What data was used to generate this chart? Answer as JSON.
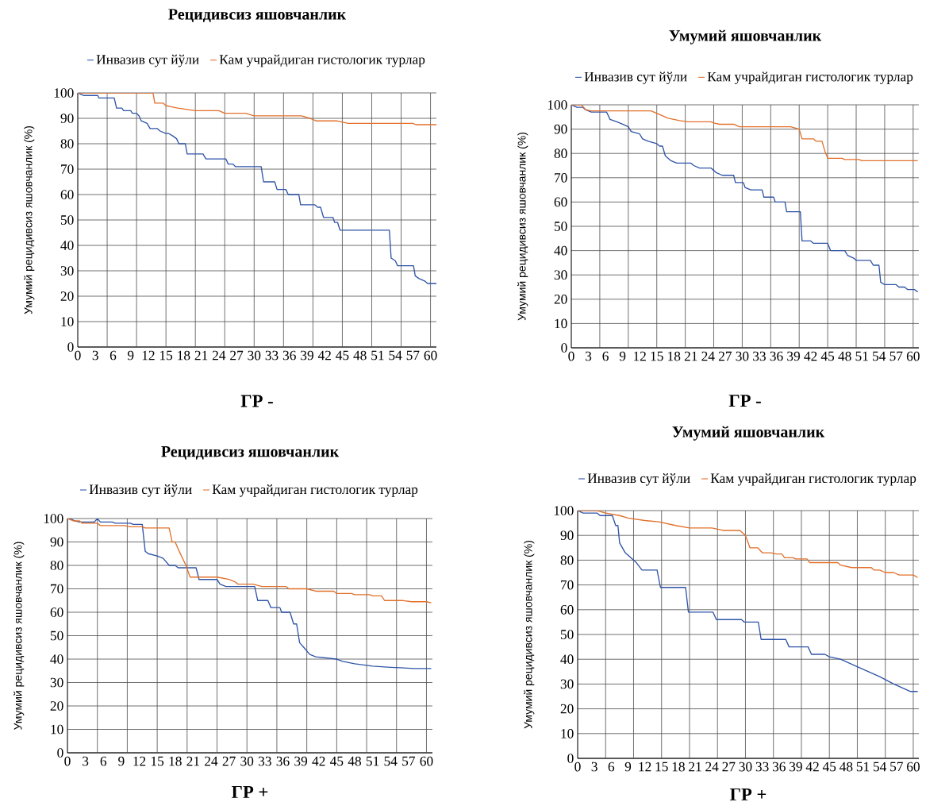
{
  "chart_data": [
    {
      "type": "line",
      "title": "Рецидивсиз яшовчанлик",
      "xlabel": "ГР -",
      "ylabel": "Умумий рецидивсиз яшовчанлик (%)",
      "xlim": [
        0,
        61
      ],
      "ylim": [
        0,
        100
      ],
      "xticks": [
        0,
        3,
        6,
        9,
        12,
        15,
        18,
        21,
        24,
        27,
        30,
        33,
        36,
        39,
        42,
        45,
        48,
        51,
        54,
        57,
        60,
        {
          "value": 5,
          "label": null
        },
        {
          "value": 10,
          "label": null
        },
        {
          "value": 15,
          "label": null
        },
        {
          "value": 20,
          "label": null
        },
        {
          "value": 25,
          "label": null
        },
        {
          "value": 30,
          "label": null
        },
        {
          "value": 35,
          "label": null
        },
        {
          "value": 40,
          "label": null
        },
        {
          "value": 45,
          "label": null
        },
        {
          "value": 50,
          "label": null
        },
        {
          "value": 55,
          "label": null
        },
        {
          "value": 60,
          "label": null
        }
      ],
      "yticks": [
        0,
        10,
        20,
        30,
        40,
        50,
        60,
        70,
        80,
        90,
        100
      ],
      "grid": true,
      "legend": "top",
      "marker": "none",
      "line_style": "solid",
      "series": [
        {
          "name": "Инвазив сут йўли",
          "color": "#2f54a8",
          "x": [
            0,
            1,
            3.4,
            3.6,
            6.2,
            6.6,
            7.5,
            7.8,
            9,
            9.3,
            10,
            10.4,
            10.8,
            11.8,
            12.3,
            13.5,
            14,
            15,
            15.5,
            16.2,
            16.8,
            17.2,
            18.3,
            18.6,
            21.3,
            21.8,
            25.2,
            25.6,
            26.4,
            26.8,
            31.2,
            31.6,
            33.5,
            33.9,
            35.4,
            35.8,
            37.6,
            37.9,
            40.3,
            40.8,
            41.3,
            41.8,
            43.4,
            43.7,
            44.2,
            44.6,
            53,
            53.3,
            54,
            54.4,
            57.1,
            57.4,
            58,
            59,
            59.5,
            61
          ],
          "values": [
            100,
            99,
            99,
            98,
            98,
            94,
            94,
            93,
            93,
            92,
            92,
            91,
            89,
            88,
            86,
            86,
            85,
            84,
            84,
            83,
            82,
            80,
            80,
            76,
            76,
            74,
            74,
            72,
            72,
            71,
            71,
            65,
            65,
            62,
            62,
            60,
            60,
            56,
            56,
            55,
            55,
            51,
            51,
            49,
            49,
            46,
            46,
            35,
            34,
            32,
            32,
            28,
            27,
            26,
            25,
            25
          ]
        },
        {
          "name": "Кам учрайдиган гистологик турлар",
          "color": "#e2702a",
          "x": [
            0,
            12.8,
            13.1,
            14.5,
            15,
            16,
            17,
            18.5,
            20,
            24,
            25,
            28.5,
            30,
            38,
            39.5,
            40.5,
            44,
            45,
            46,
            57,
            57.5,
            61
          ],
          "values": [
            100,
            100,
            96,
            96,
            95,
            94.5,
            94,
            93.5,
            93,
            93,
            92,
            92,
            91,
            91,
            90,
            89,
            89,
            88.5,
            88,
            88,
            87.5,
            87.5
          ]
        }
      ]
    },
    {
      "type": "line",
      "title": "Умумий яшовчанлик",
      "xlabel": "ГР -",
      "ylabel": "Умумий рецидивсиз яшовчанлик (%)",
      "xlim": [
        0,
        61
      ],
      "ylim": [
        0,
        100
      ],
      "xticks": [
        0,
        3,
        6,
        9,
        12,
        15,
        18,
        21,
        24,
        27,
        30,
        33,
        36,
        39,
        42,
        45,
        48,
        51,
        54,
        57,
        60,
        {
          "value": 5,
          "label": null
        },
        {
          "value": 10,
          "label": null
        },
        {
          "value": 15,
          "label": null
        },
        {
          "value": 20,
          "label": null
        },
        {
          "value": 25,
          "label": null
        },
        {
          "value": 30,
          "label": null
        },
        {
          "value": 35,
          "label": null
        },
        {
          "value": 40,
          "label": null
        },
        {
          "value": 45,
          "label": null
        },
        {
          "value": 50,
          "label": null
        },
        {
          "value": 55,
          "label": null
        },
        {
          "value": 60,
          "label": null
        }
      ],
      "yticks": [
        0,
        10,
        20,
        30,
        40,
        50,
        60,
        70,
        80,
        90,
        100
      ],
      "grid": true,
      "legend": "top",
      "marker": "none",
      "line_style": "solid",
      "series": [
        {
          "name": "Инвазив сут йўли",
          "color": "#2f54a8",
          "x": [
            0,
            1,
            2,
            2.5,
            3.5,
            6.2,
            6.8,
            8,
            9,
            10,
            10.5,
            12,
            12.5,
            13.5,
            15,
            15.5,
            16,
            16.5,
            17.5,
            18.5,
            21,
            21.5,
            22.5,
            24.5,
            25,
            25.5,
            26.5,
            28.5,
            28.8,
            30.2,
            30.5,
            31.5,
            33.5,
            33.8,
            35.5,
            35.8,
            37.5,
            37.8,
            40.2,
            40.5,
            42,
            42.5,
            45,
            45.5,
            48,
            48.5,
            49.5,
            50,
            52.5,
            53,
            54,
            54.3,
            55,
            57,
            57.5,
            58.5,
            59,
            60.2,
            60.8
          ],
          "values": [
            100,
            99,
            99,
            98,
            97,
            97,
            94,
            93,
            92,
            91,
            89,
            88,
            86,
            85,
            84,
            83,
            83,
            79,
            77,
            76,
            76,
            75,
            74,
            74,
            73,
            72,
            71,
            71,
            68,
            68,
            66,
            65,
            65,
            62,
            62,
            60,
            60,
            56,
            56,
            44,
            44,
            43,
            43,
            40,
            40,
            38,
            37,
            36,
            36,
            34,
            34,
            27,
            26,
            26,
            25,
            25,
            24,
            24,
            23
          ]
        },
        {
          "name": "Кам учрайдиган гистологик турлар",
          "color": "#e2702a",
          "x": [
            0,
            1.8,
            2.5,
            3.5,
            14,
            15.5,
            17,
            19,
            20.5,
            24.5,
            25,
            26,
            28.5,
            29.5,
            38.5,
            40,
            40.5,
            42.5,
            43,
            44,
            44.5,
            45,
            47.5,
            48,
            50.5,
            51,
            60.8
          ],
          "values": [
            100,
            100,
            98,
            97.5,
            97.5,
            96,
            94.5,
            93.5,
            93,
            93,
            92.5,
            92,
            92,
            91,
            91,
            90,
            86,
            86,
            85,
            85,
            81,
            78,
            78,
            77.5,
            77.5,
            77,
            77
          ]
        }
      ]
    },
    {
      "type": "line",
      "title": "Рецидивсиз яшовчанлик",
      "xlabel": "ГР +",
      "ylabel": "Умумий рецидивсиз яшовчанлик (%)",
      "xlim": [
        0,
        61
      ],
      "ylim": [
        0,
        100
      ],
      "xticks": [
        0,
        3,
        6,
        9,
        12,
        15,
        18,
        21,
        24,
        27,
        30,
        33,
        36,
        39,
        42,
        45,
        48,
        51,
        54,
        57,
        60,
        {
          "value": 5,
          "label": null
        },
        {
          "value": 10,
          "label": null
        },
        {
          "value": 15,
          "label": null
        },
        {
          "value": 20,
          "label": null
        },
        {
          "value": 25,
          "label": null
        },
        {
          "value": 30,
          "label": null
        },
        {
          "value": 35,
          "label": null
        },
        {
          "value": 40,
          "label": null
        },
        {
          "value": 45,
          "label": null
        },
        {
          "value": 50,
          "label": null
        },
        {
          "value": 55,
          "label": null
        },
        {
          "value": 60,
          "label": null
        }
      ],
      "yticks": [
        0,
        10,
        20,
        30,
        40,
        50,
        60,
        70,
        80,
        90,
        100
      ],
      "grid": true,
      "legend": "top",
      "marker": "none",
      "line_style": "solid",
      "series": [
        {
          "name": "Инвазив сут йўли",
          "color": "#2f54a8",
          "x": [
            0,
            0.5,
            1.2,
            2,
            4.5,
            5,
            5.5,
            7.5,
            8,
            10.5,
            11,
            12.5,
            13,
            13.5,
            15,
            16,
            17,
            18,
            18.5,
            21.5,
            22,
            25,
            25.5,
            26.5,
            31.3,
            31.8,
            33.5,
            34,
            35.5,
            35.8,
            37.2,
            37.8,
            38.3,
            38.8,
            39.5,
            40.5,
            41.5,
            45,
            46,
            48,
            51,
            54,
            58,
            60.8
          ],
          "values": [
            100,
            100,
            99,
            98.5,
            98.5,
            100,
            98.5,
            98.5,
            98,
            98,
            97.5,
            97.5,
            86,
            85,
            84,
            83,
            80,
            80,
            79,
            79,
            74,
            74,
            72,
            71,
            71,
            65,
            65,
            62,
            62,
            60,
            60,
            55,
            55,
            47,
            45,
            42,
            41,
            40,
            39,
            38,
            37,
            36.5,
            36,
            36
          ]
        },
        {
          "name": "Кам учрайдиган гистологик турлар",
          "color": "#e2702a",
          "x": [
            0,
            1,
            2,
            2.5,
            5,
            5.5,
            9.5,
            10.5,
            12.5,
            13,
            17,
            17.5,
            18,
            18.5,
            19.8,
            20.5,
            25,
            27,
            28,
            28.5,
            31,
            32.5,
            36.5,
            37,
            40,
            41.5,
            44.5,
            45,
            47.5,
            48,
            50.5,
            51,
            52.5,
            53,
            56,
            57.5,
            60,
            60.8
          ],
          "values": [
            100,
            99,
            99,
            98,
            98,
            97,
            97,
            96.5,
            96.5,
            96,
            96,
            90,
            90,
            87,
            80,
            75,
            75,
            74,
            73,
            72,
            72,
            71,
            71,
            70,
            70,
            69,
            69,
            68,
            68,
            67.5,
            67.5,
            67,
            67,
            65,
            65,
            64.5,
            64.5,
            64
          ]
        }
      ]
    },
    {
      "type": "line",
      "title": "Умумий яшовчанлик",
      "xlabel": "ГР +",
      "ylabel": "Умумий рецидивсиз яшовчанлик (%)",
      "xlim": [
        0,
        61
      ],
      "ylim": [
        0,
        100
      ],
      "xticks": [
        0,
        3,
        6,
        9,
        12,
        15,
        18,
        21,
        24,
        27,
        30,
        33,
        36,
        39,
        42,
        45,
        48,
        51,
        54,
        57,
        60,
        {
          "value": 5,
          "label": null
        },
        {
          "value": 10,
          "label": null
        },
        {
          "value": 15,
          "label": null
        },
        {
          "value": 20,
          "label": null
        },
        {
          "value": 25,
          "label": null
        },
        {
          "value": 30,
          "label": null
        },
        {
          "value": 35,
          "label": null
        },
        {
          "value": 40,
          "label": null
        },
        {
          "value": 45,
          "label": null
        },
        {
          "value": 50,
          "label": null
        },
        {
          "value": 55,
          "label": null
        },
        {
          "value": 60,
          "label": null
        }
      ],
      "yticks": [
        0,
        10,
        20,
        30,
        40,
        50,
        60,
        70,
        80,
        90,
        100
      ],
      "grid": true,
      "legend": "top",
      "marker": "none",
      "line_style": "solid",
      "series": [
        {
          "name": "Инвазив сут йўли",
          "color": "#2f54a8",
          "x": [
            0,
            1,
            3.5,
            4,
            6.2,
            6.8,
            7.2,
            7.5,
            8.5,
            9.5,
            10.5,
            11.5,
            14.2,
            14.8,
            19.3,
            19.8,
            24.2,
            24.8,
            29.3,
            29.8,
            32.3,
            32.8,
            37.2,
            37.8,
            41.2,
            41.8,
            44.2,
            45,
            47,
            50,
            54,
            56.5,
            58.5,
            59.5,
            60.8
          ],
          "values": [
            100,
            99,
            99,
            98,
            98,
            94,
            94,
            87,
            83,
            81,
            79,
            76,
            76,
            69,
            69,
            59,
            59,
            56,
            56,
            55,
            55,
            48,
            48,
            45,
            45,
            42,
            42,
            41,
            40,
            37,
            33,
            30,
            28,
            27,
            27
          ]
        },
        {
          "name": "Кам учрайдиган гистологик турлар",
          "color": "#e2702a",
          "x": [
            0,
            3.5,
            5,
            7.5,
            9,
            12,
            14.5,
            17.5,
            20,
            24,
            25,
            26,
            29,
            30,
            30.8,
            32.2,
            33,
            34.5,
            35.5,
            36.5,
            37,
            38.5,
            39,
            41,
            41.5,
            46.5,
            47,
            49,
            52.5,
            53,
            54,
            55,
            56.5,
            57.5,
            60,
            60.8
          ],
          "values": [
            100,
            100,
            99,
            98,
            97,
            96,
            95.5,
            94,
            93,
            93,
            92.5,
            92,
            92,
            90,
            85,
            85,
            83,
            83,
            82.5,
            82.5,
            81,
            81,
            80.5,
            80.5,
            79,
            79,
            78,
            77,
            77,
            76,
            76,
            75,
            75,
            74,
            74,
            73
          ]
        }
      ]
    }
  ]
}
